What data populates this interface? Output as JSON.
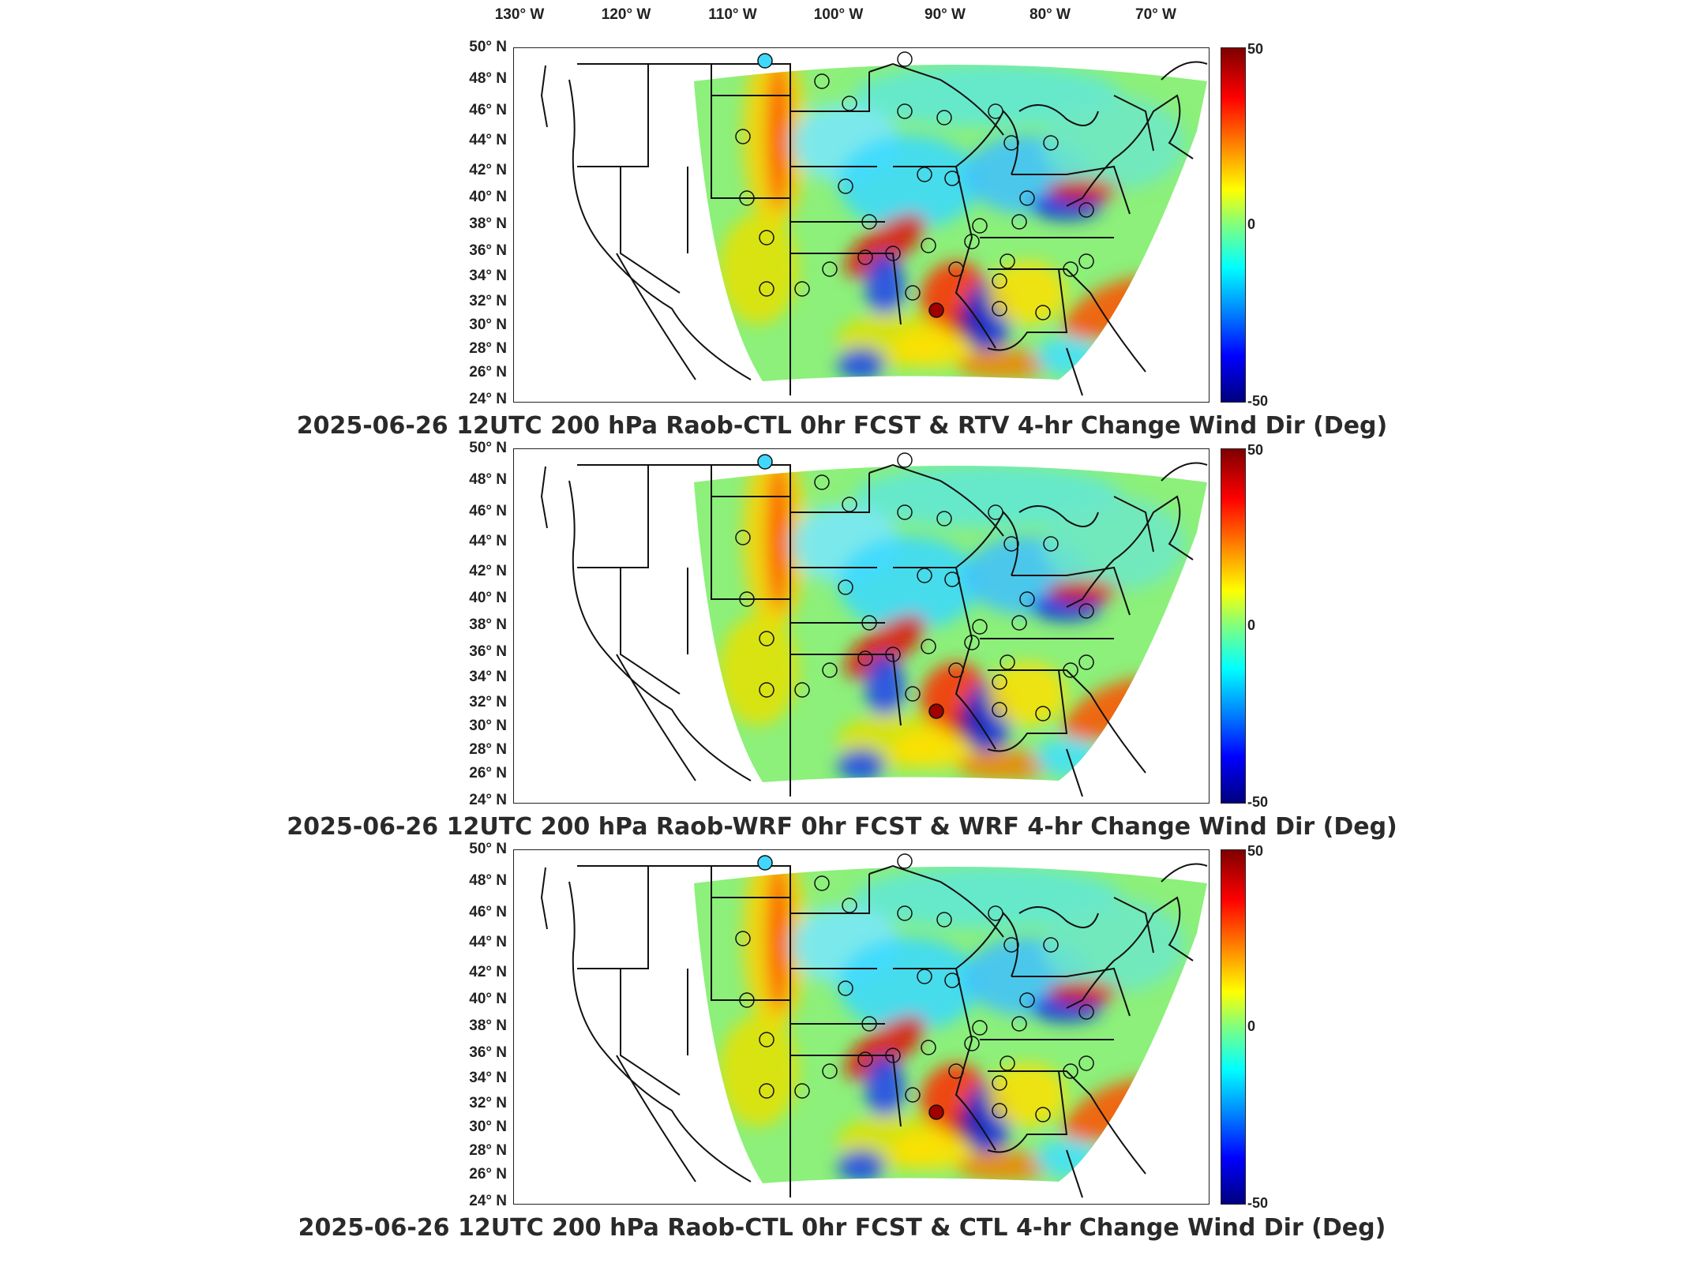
{
  "longitude_labels": [
    "130° W",
    "120° W",
    "110° W",
    "100° W",
    "90° W",
    "80° W",
    "70° W"
  ],
  "latitude_labels": [
    "50° N",
    "48° N",
    "46° N",
    "44° N",
    "42° N",
    "40° N",
    "38° N",
    "36° N",
    "34° N",
    "32° N",
    "30° N",
    "28° N",
    "26° N",
    "24° N"
  ],
  "colorbar": {
    "max": "50",
    "mid": "0",
    "min": "-50"
  },
  "panels": [
    {
      "title": "2025-06-26 12UTC 200 hPa Raob-CTL 0hr FCST & RTV 4-hr Change Wind Dir (Deg)"
    },
    {
      "title": "2025-06-26 12UTC 200 hPa Raob-WRF 0hr FCST & WRF 4-hr Change Wind Dir (Deg)"
    },
    {
      "title": "2025-06-26 12UTC 200 hPa Raob-CTL 0hr FCST & CTL 4-hr Change Wind Dir (Deg)"
    }
  ],
  "colors": {
    "positive": "#ff0000",
    "neutral": "#7fff7f",
    "negative": "#0000ff"
  }
}
